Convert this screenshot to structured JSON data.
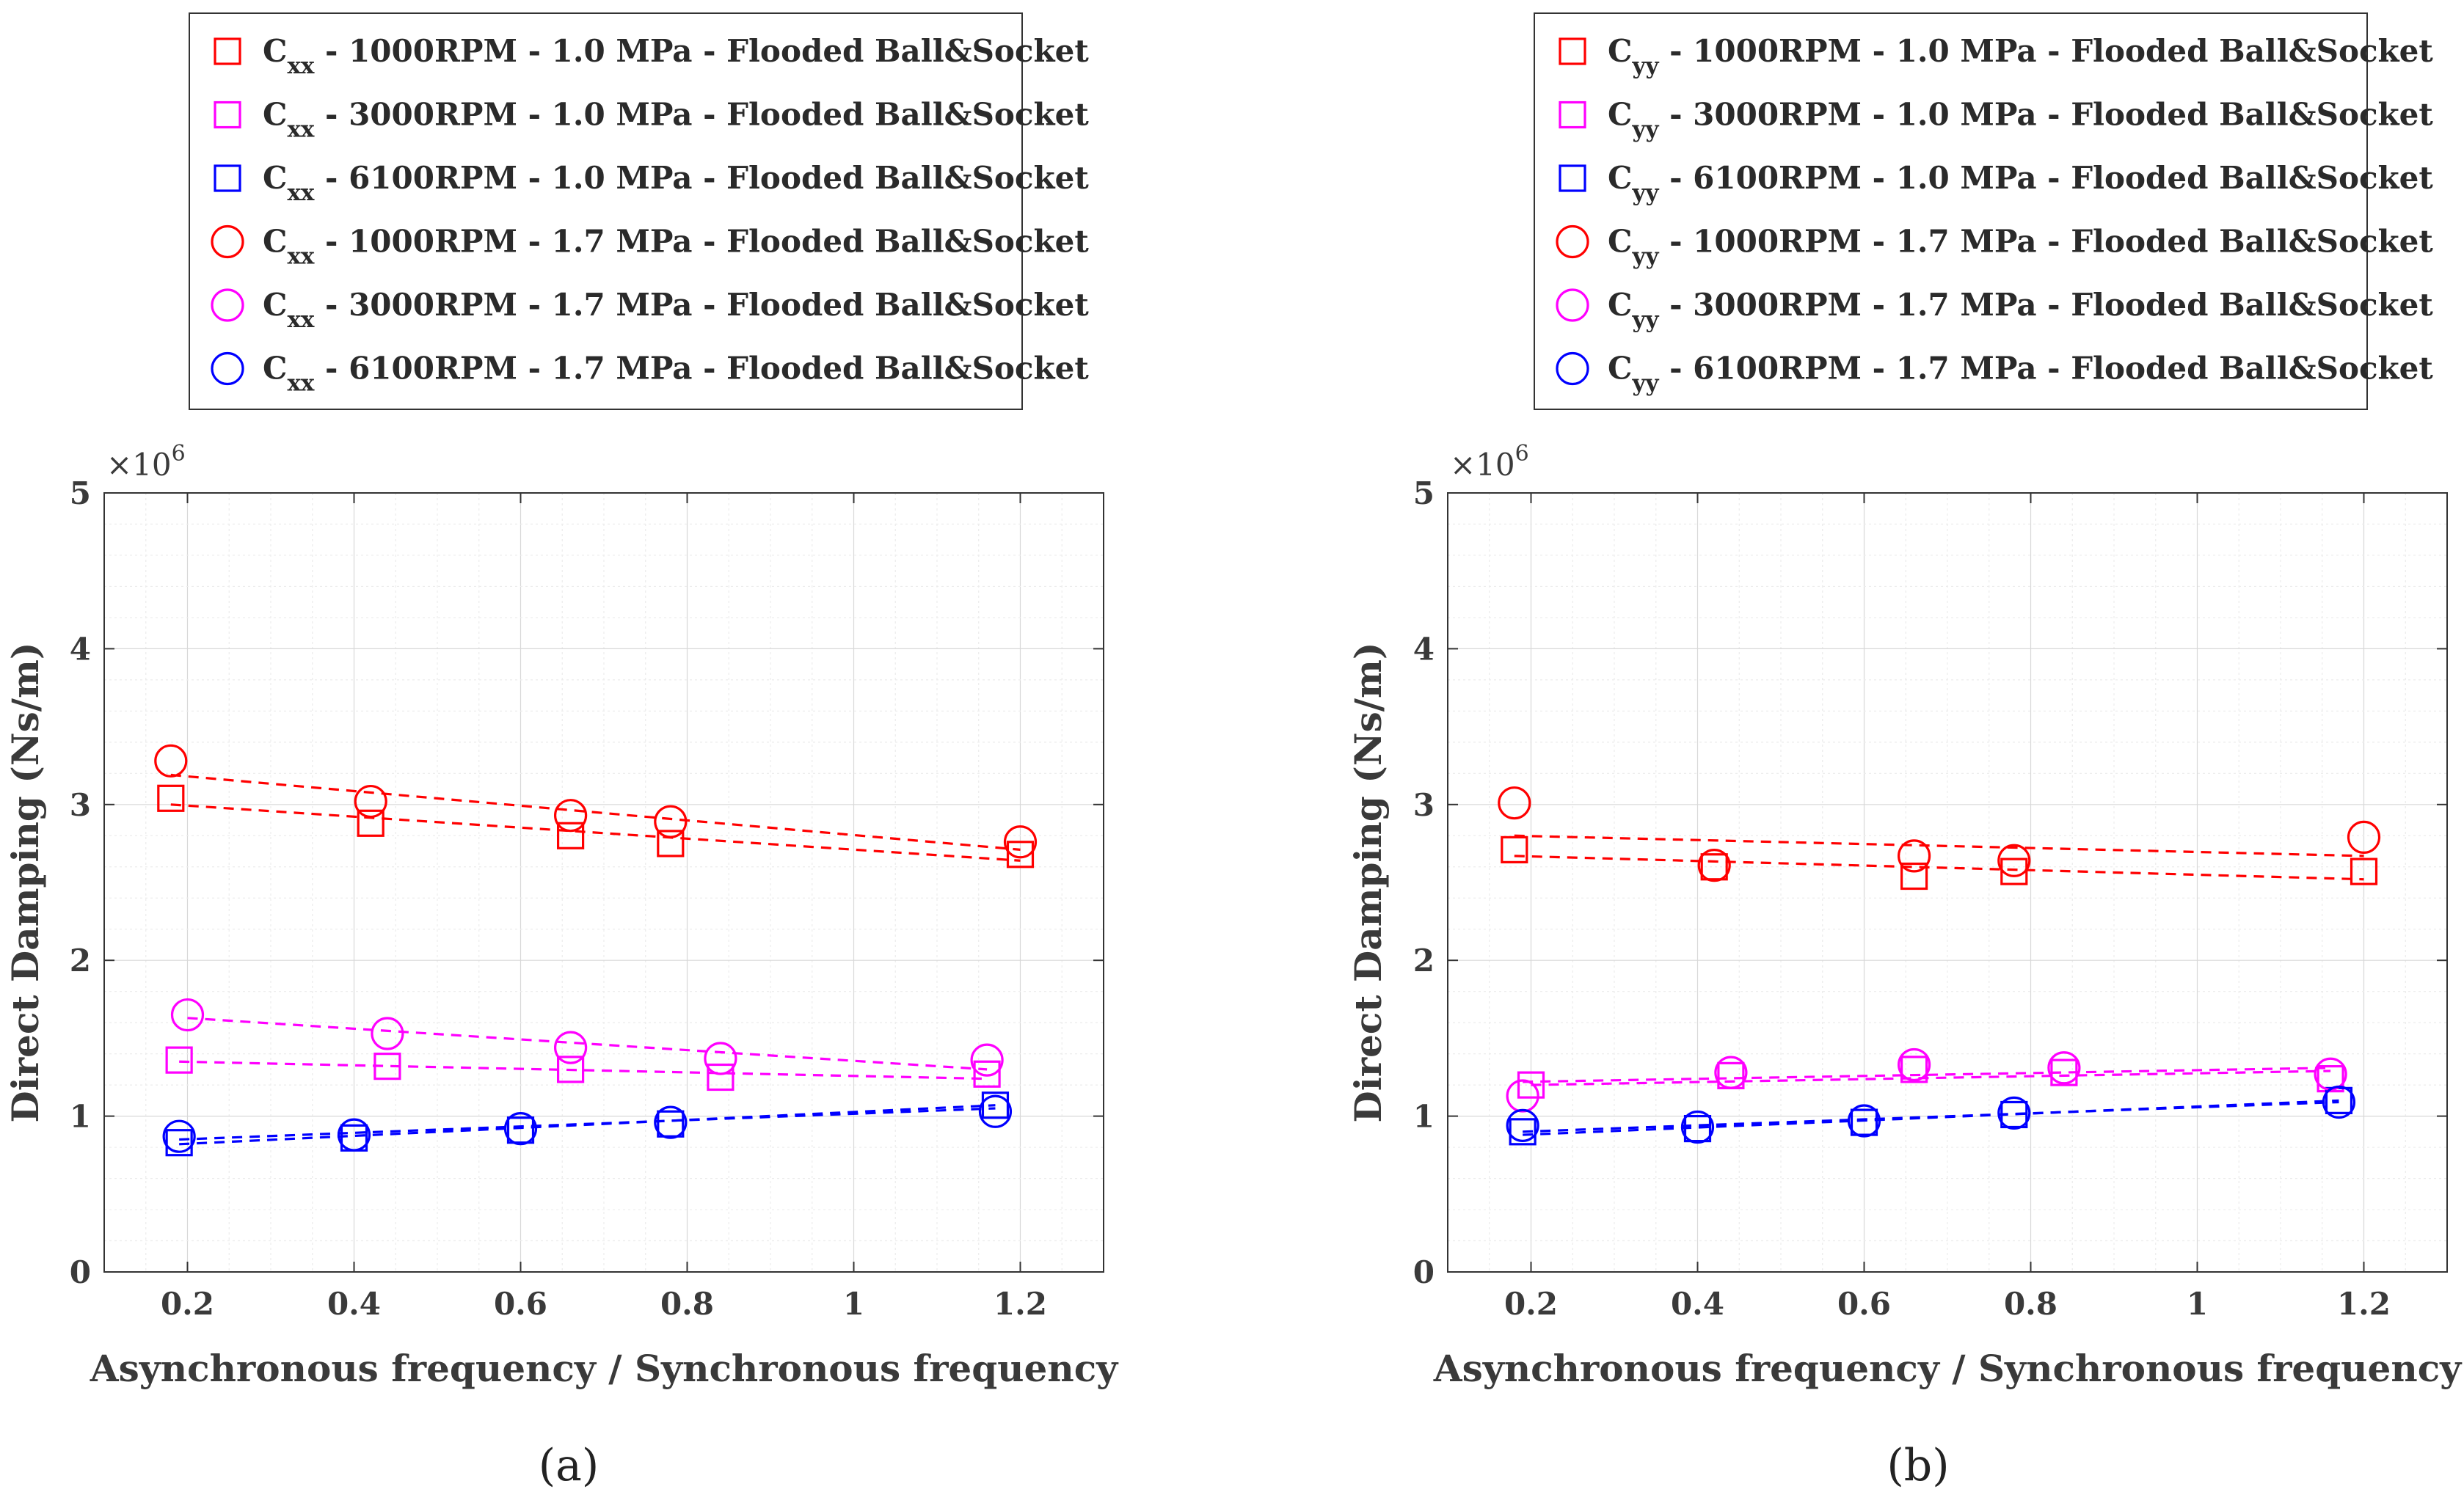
{
  "figure": {
    "panel_labels": [
      "(a)",
      "(b)"
    ]
  },
  "chart_data": [
    {
      "type": "scatter",
      "panel": "(a)",
      "xlabel": "Asynchronous frequency / Synchronous frequency",
      "ylabel": "Direct Damping (Ns/m)",
      "y_multiplier": "×10",
      "y_exponent": "6",
      "xlim": [
        0.1,
        1.3
      ],
      "ylim": [
        0,
        5
      ],
      "xticks": [
        0.2,
        0.4,
        0.6,
        0.8,
        1,
        1.2
      ],
      "xtick_labels": [
        "0.2",
        "0.4",
        "0.6",
        "0.8",
        "1",
        "1.2"
      ],
      "yticks": [
        0,
        1,
        2,
        3,
        4,
        5
      ],
      "ytick_labels": [
        "0",
        "1",
        "2",
        "3",
        "4",
        "5"
      ],
      "grid": true,
      "legend_position": "top-left (above plot)",
      "series": [
        {
          "name": "C",
          "sub": "xx",
          "desc": " - 1000RPM - 1.0 MPa - Flooded Ball&Socket",
          "color": "#ff0000",
          "marker": "square",
          "x": [
            0.18,
            0.42,
            0.66,
            0.78,
            1.2
          ],
          "y": [
            3.04,
            2.88,
            2.8,
            2.75,
            2.68
          ],
          "fit": [
            [
              0.18,
              3.0
            ],
            [
              1.2,
              2.64
            ]
          ]
        },
        {
          "name": "C",
          "sub": "xx",
          "desc": " - 3000RPM - 1.0 MPa - Flooded Ball&Socket",
          "color": "#ff00ff",
          "marker": "square",
          "x": [
            0.19,
            0.44,
            0.66,
            0.84,
            1.16
          ],
          "y": [
            1.36,
            1.32,
            1.3,
            1.25,
            1.27
          ],
          "fit": [
            [
              0.19,
              1.35
            ],
            [
              1.16,
              1.24
            ]
          ]
        },
        {
          "name": "C",
          "sub": "xx",
          "desc": " - 6100RPM - 1.0 MPa - Flooded Ball&Socket",
          "color": "#0000ff",
          "marker": "square",
          "x": [
            0.19,
            0.4,
            0.6,
            0.78,
            1.17
          ],
          "y": [
            0.83,
            0.86,
            0.91,
            0.95,
            1.07
          ],
          "fit": [
            [
              0.19,
              0.82
            ],
            [
              1.17,
              1.07
            ]
          ]
        },
        {
          "name": "C",
          "sub": "xx",
          "desc": " - 1000RPM - 1.7 MPa - Flooded Ball&Socket",
          "color": "#ff0000",
          "marker": "circle",
          "x": [
            0.18,
            0.42,
            0.66,
            0.78,
            1.2
          ],
          "y": [
            3.28,
            3.02,
            2.93,
            2.89,
            2.76
          ],
          "fit": [
            [
              0.18,
              3.19
            ],
            [
              1.2,
              2.71
            ]
          ]
        },
        {
          "name": "C",
          "sub": "xx",
          "desc": " - 3000RPM - 1.7 MPa - Flooded Ball&Socket",
          "color": "#ff00ff",
          "marker": "circle",
          "x": [
            0.2,
            0.44,
            0.66,
            0.84,
            1.16
          ],
          "y": [
            1.65,
            1.53,
            1.44,
            1.37,
            1.36
          ],
          "fit": [
            [
              0.2,
              1.63
            ],
            [
              1.16,
              1.3
            ]
          ]
        },
        {
          "name": "C",
          "sub": "xx",
          "desc": " - 6100RPM - 1.7 MPa - Flooded Ball&Socket",
          "color": "#0000ff",
          "marker": "circle",
          "x": [
            0.19,
            0.4,
            0.6,
            0.78,
            1.17
          ],
          "y": [
            0.87,
            0.88,
            0.92,
            0.96,
            1.03
          ],
          "fit": [
            [
              0.19,
              0.85
            ],
            [
              1.17,
              1.05
            ]
          ]
        }
      ]
    },
    {
      "type": "scatter",
      "panel": "(b)",
      "xlabel": "Asynchronous frequency / Synchronous frequency",
      "ylabel": "Direct Damping (Ns/m)",
      "y_multiplier": "×10",
      "y_exponent": "6",
      "xlim": [
        0.1,
        1.3
      ],
      "ylim": [
        0,
        5
      ],
      "xticks": [
        0.2,
        0.4,
        0.6,
        0.8,
        1,
        1.2
      ],
      "xtick_labels": [
        "0.2",
        "0.4",
        "0.6",
        "0.8",
        "1",
        "1.2"
      ],
      "yticks": [
        0,
        1,
        2,
        3,
        4,
        5
      ],
      "ytick_labels": [
        "0",
        "1",
        "2",
        "3",
        "4",
        "5"
      ],
      "grid": true,
      "legend_position": "top-left (above plot)",
      "series": [
        {
          "name": "C",
          "sub": "yy",
          "desc": " - 1000RPM - 1.0 MPa - Flooded Ball&Socket",
          "color": "#ff0000",
          "marker": "square",
          "x": [
            0.18,
            0.42,
            0.66,
            0.78,
            1.2
          ],
          "y": [
            2.71,
            2.6,
            2.54,
            2.57,
            2.57
          ],
          "fit": [
            [
              0.18,
              2.67
            ],
            [
              1.2,
              2.52
            ]
          ]
        },
        {
          "name": "C",
          "sub": "yy",
          "desc": " - 3000RPM - 1.0 MPa - Flooded Ball&Socket",
          "color": "#ff00ff",
          "marker": "square",
          "x": [
            0.2,
            0.44,
            0.66,
            0.84,
            1.16
          ],
          "y": [
            1.2,
            1.26,
            1.3,
            1.28,
            1.24
          ],
          "fit": [
            [
              0.2,
              1.2
            ],
            [
              1.16,
              1.29
            ]
          ]
        },
        {
          "name": "C",
          "sub": "yy",
          "desc": " - 6100RPM - 1.0 MPa - Flooded Ball&Socket",
          "color": "#0000ff",
          "marker": "square",
          "x": [
            0.19,
            0.4,
            0.6,
            0.78,
            1.17
          ],
          "y": [
            0.9,
            0.92,
            0.96,
            1.01,
            1.1
          ],
          "fit": [
            [
              0.19,
              0.88
            ],
            [
              1.17,
              1.1
            ]
          ]
        },
        {
          "name": "C",
          "sub": "yy",
          "desc": " - 1000RPM - 1.7 MPa - Flooded Ball&Socket",
          "color": "#ff0000",
          "marker": "circle",
          "x": [
            0.18,
            0.42,
            0.66,
            0.78,
            1.2
          ],
          "y": [
            3.01,
            2.61,
            2.67,
            2.64,
            2.79
          ],
          "fit": [
            [
              0.18,
              2.8
            ],
            [
              1.2,
              2.67
            ]
          ]
        },
        {
          "name": "C",
          "sub": "yy",
          "desc": " - 3000RPM - 1.7 MPa - Flooded Ball&Socket",
          "color": "#ff00ff",
          "marker": "circle",
          "x": [
            0.19,
            0.44,
            0.66,
            0.84,
            1.16
          ],
          "y": [
            1.13,
            1.28,
            1.33,
            1.31,
            1.27
          ],
          "fit": [
            [
              0.19,
              1.22
            ],
            [
              1.16,
              1.31
            ]
          ]
        },
        {
          "name": "C",
          "sub": "yy",
          "desc": " - 6100RPM - 1.7 MPa - Flooded Ball&Socket",
          "color": "#0000ff",
          "marker": "circle",
          "x": [
            0.19,
            0.4,
            0.6,
            0.78,
            1.17
          ],
          "y": [
            0.94,
            0.93,
            0.97,
            1.02,
            1.09
          ],
          "fit": [
            [
              0.19,
              0.9
            ],
            [
              1.17,
              1.09
            ]
          ]
        }
      ]
    }
  ]
}
